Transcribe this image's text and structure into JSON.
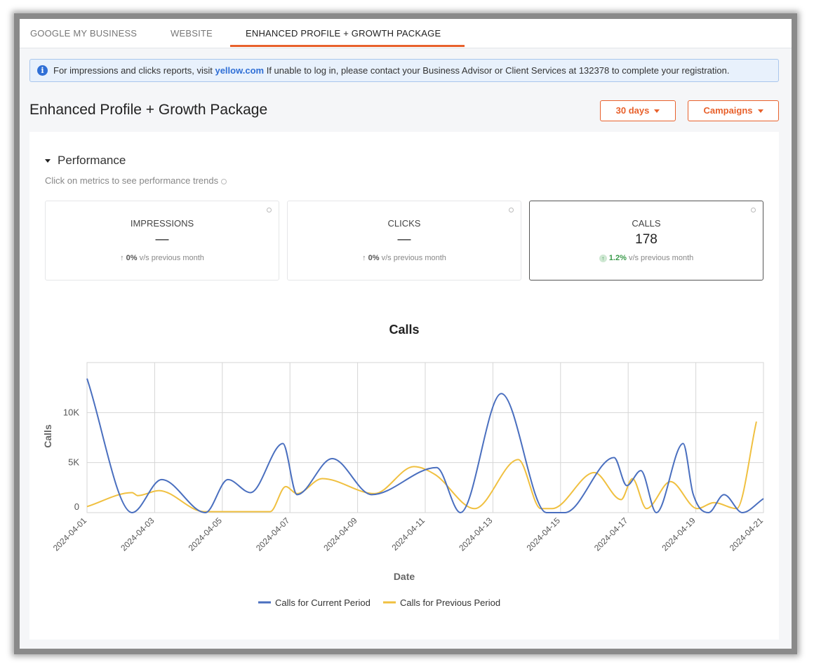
{
  "tabs": [
    {
      "label": "GOOGLE MY BUSINESS",
      "active": false
    },
    {
      "label": "WEBSITE",
      "active": false
    },
    {
      "label": "ENHANCED PROFILE + GROWTH PACKAGE",
      "active": true
    }
  ],
  "info": {
    "icon": "info-icon",
    "text_before": "For impressions and clicks reports, visit",
    "link": "yellow.com",
    "text_after": "If unable to log in, please contact your Business Advisor or Client Services at 132378 to complete your registration."
  },
  "page_title": "Enhanced Profile + Growth Package",
  "filters": {
    "period": "30 days",
    "campaigns": "Campaigns"
  },
  "performance": {
    "heading": "Performance",
    "subtitle": "Click on metrics to see performance trends",
    "metrics": [
      {
        "label": "IMPRESSIONS",
        "value": "—",
        "change": "0%",
        "suffix": "v/s previous month",
        "selected": false
      },
      {
        "label": "CLICKS",
        "value": "—",
        "change": "0%",
        "suffix": "v/s previous month",
        "selected": false
      },
      {
        "label": "CALLS",
        "value": "178",
        "change": "1.2%",
        "suffix": "v/s previous month",
        "selected": true
      }
    ]
  },
  "colors": {
    "accent": "#e8612c",
    "link": "#2f6fd6",
    "positive": "#3a9a4a"
  },
  "chart_data": {
    "type": "line",
    "title": "Calls",
    "xlabel": "Date",
    "ylabel": "Calls",
    "ylim": [
      0,
      15000
    ],
    "xlim": [
      "2024-04-01",
      "2024-04-21"
    ],
    "grid": true,
    "legend_position": "bottom",
    "x_ticks": [
      "2024-04-01",
      "2024-04-03",
      "2024-04-05",
      "2024-04-07",
      "2024-04-09",
      "2024-04-11",
      "2024-04-13",
      "2024-04-15",
      "2024-04-17",
      "2024-04-19",
      "2024-04-21"
    ],
    "y_ticks": [
      {
        "value": 0,
        "label": "0"
      },
      {
        "value": 5000,
        "label": "5K"
      },
      {
        "value": 10000,
        "label": "10K"
      }
    ],
    "series": [
      {
        "name": "Calls for Current Period",
        "color": "#4a6fbf",
        "points": [
          [
            "2024-04-01T00:00",
            13400
          ],
          [
            "2024-04-02T08:00",
            0
          ],
          [
            "2024-04-03T05:00",
            3300
          ],
          [
            "2024-04-04T12:00",
            0
          ],
          [
            "2024-04-05T04:00",
            3300
          ],
          [
            "2024-04-05T20:00",
            2000
          ],
          [
            "2024-04-06T19:00",
            6900
          ],
          [
            "2024-04-07T05:00",
            1800
          ],
          [
            "2024-04-08T06:00",
            5400
          ],
          [
            "2024-04-09T10:00",
            1800
          ],
          [
            "2024-04-11T08:00",
            4500
          ],
          [
            "2024-04-12T01:00",
            0
          ],
          [
            "2024-04-13T06:00",
            11900
          ],
          [
            "2024-04-14T14:00",
            0
          ],
          [
            "2024-04-15T03:00",
            0
          ],
          [
            "2024-04-16T14:00",
            5500
          ],
          [
            "2024-04-16T23:00",
            2700
          ],
          [
            "2024-04-17T09:00",
            4200
          ],
          [
            "2024-04-17T20:00",
            0
          ],
          [
            "2024-04-18T15:00",
            6900
          ],
          [
            "2024-04-18T22:00",
            1900
          ],
          [
            "2024-04-19T09:00",
            0
          ],
          [
            "2024-04-19T20:00",
            1800
          ],
          [
            "2024-04-20T09:00",
            0
          ],
          [
            "2024-04-21T00:00",
            1400
          ]
        ]
      },
      {
        "name": "Calls for Previous Period",
        "color": "#f0c040",
        "points": [
          [
            "2024-04-01T00:00",
            600
          ],
          [
            "2024-04-02T08:00",
            2000
          ],
          [
            "2024-04-02T12:00",
            1700
          ],
          [
            "2024-04-03T03:00",
            2200
          ],
          [
            "2024-04-04T11:00",
            100
          ],
          [
            "2024-04-06T10:00",
            100
          ],
          [
            "2024-04-06T21:00",
            2600
          ],
          [
            "2024-04-07T05:00",
            1900
          ],
          [
            "2024-04-07T23:00",
            3400
          ],
          [
            "2024-04-09T12:00",
            1900
          ],
          [
            "2024-04-10T16:00",
            4600
          ],
          [
            "2024-04-11T07:00",
            3800
          ],
          [
            "2024-04-12T11:00",
            400
          ],
          [
            "2024-04-13T18:00",
            5300
          ],
          [
            "2024-04-14T10:00",
            400
          ],
          [
            "2024-04-14T18:00",
            400
          ],
          [
            "2024-04-16T00:00",
            4000
          ],
          [
            "2024-04-16T19:00",
            1300
          ],
          [
            "2024-04-17T03:00",
            3400
          ],
          [
            "2024-04-17T13:00",
            400
          ],
          [
            "2024-04-18T06:00",
            3100
          ],
          [
            "2024-04-19T01:00",
            400
          ],
          [
            "2024-04-19T13:00",
            1000
          ],
          [
            "2024-04-20T05:00",
            400
          ],
          [
            "2024-04-20T19:00",
            9100
          ]
        ]
      }
    ]
  }
}
